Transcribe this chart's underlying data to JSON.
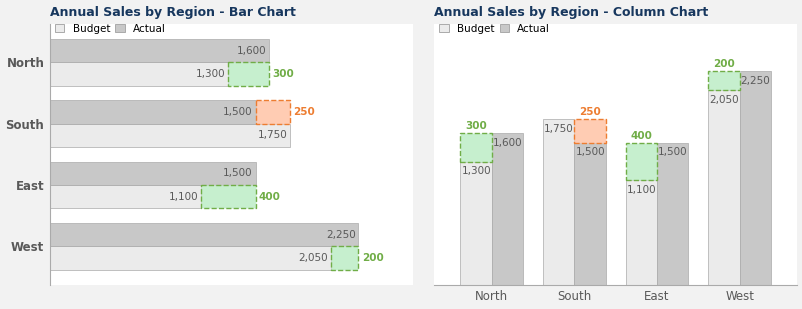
{
  "regions": [
    "North",
    "South",
    "East",
    "West"
  ],
  "budget": [
    1300,
    1750,
    1100,
    2050
  ],
  "actual": [
    1600,
    1500,
    1500,
    2250
  ],
  "variance": [
    300,
    -250,
    400,
    200
  ],
  "bar_title": "Annual Sales by Region - Bar Chart",
  "col_title": "Annual Sales by Region - Column Chart",
  "budget_color": "#EBEBEB",
  "actual_color": "#C8C8C8",
  "var_pos_color": "#C6EFCE",
  "var_neg_color": "#FFCCB3",
  "var_pos_edge": "#70AD47",
  "var_neg_edge": "#ED7D31",
  "var_pos_text": "#70AD47",
  "var_neg_text": "#ED7D31",
  "bar_val_color": "#595959",
  "title_color": "#17375E",
  "label_color": "#595959",
  "bg_color": "#F2F2F2",
  "legend_budget_color": "#EBEBEB",
  "legend_actual_color": "#C8C8C8",
  "axis_color": "#AAAAAA"
}
